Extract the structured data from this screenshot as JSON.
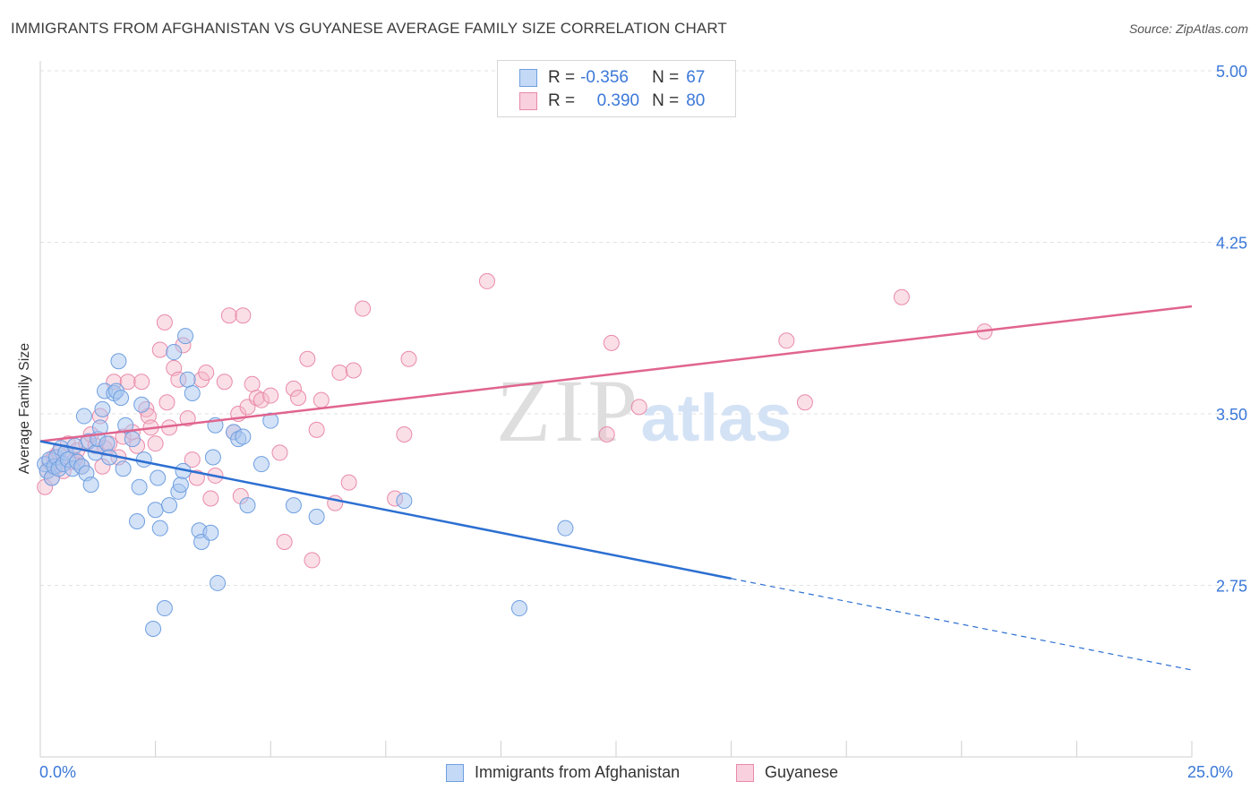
{
  "chart_title": "IMMIGRANTS FROM AFGHANISTAN VS GUYANESE AVERAGE FAMILY SIZE CORRELATION CHART",
  "source_text": "Source: ZipAtlas.com",
  "watermark": {
    "zip": "ZIP",
    "atlas": "atlas"
  },
  "colors": {
    "blue": "#a8c6f0",
    "blue_stroke": "#6f9fe0",
    "blue_line": "#2c6fd1",
    "pink": "#f5b8ca",
    "pink_stroke": "#e98aaa",
    "pink_line": "#e0648f",
    "tick_label": "#3b78d8"
  },
  "legend_top": {
    "rows": [
      {
        "r_label": "R =",
        "r_value": "-0.356",
        "n_label": "N =",
        "n_value": "67"
      },
      {
        "r_label": "R =",
        "r_value": "0.390",
        "n_label": "N =",
        "n_value": "80"
      }
    ]
  },
  "legend_bottom": [
    "Immigrants from Afghanistan",
    "Guyanese"
  ],
  "chart_data": {
    "type": "scatter",
    "title": "IMMIGRANTS FROM AFGHANISTAN VS GUYANESE AVERAGE FAMILY SIZE CORRELATION CHART",
    "xlabel": "",
    "ylabel": "Average Family Size",
    "xlim": [
      0,
      25
    ],
    "ylim": [
      2.0,
      5.12
    ],
    "x_tick_labels": [
      "0.0%",
      "25.0%"
    ],
    "y_ticks": [
      2.75,
      3.5,
      4.25,
      5.0
    ],
    "y_tick_labels": [
      "2.75",
      "3.50",
      "4.25",
      "5.00"
    ],
    "grid": "horizontal dashed",
    "legend_position": "top-center and bottom",
    "series": [
      {
        "name": "Immigrants from Afghanistan",
        "color": "#a8c6f0",
        "r": -0.356,
        "n": 67,
        "trend": {
          "x0": 0.0,
          "y0": 3.38,
          "x1": 15.0,
          "y1": 2.78,
          "dashed_to_x": 25.0,
          "dashed_to_y": 2.38
        },
        "points": [
          [
            0.1,
            3.28
          ],
          [
            0.15,
            3.25
          ],
          [
            0.2,
            3.3
          ],
          [
            0.25,
            3.22
          ],
          [
            0.3,
            3.27
          ],
          [
            0.35,
            3.31
          ],
          [
            0.4,
            3.26
          ],
          [
            0.45,
            3.35
          ],
          [
            0.5,
            3.28
          ],
          [
            0.55,
            3.33
          ],
          [
            0.6,
            3.3
          ],
          [
            0.7,
            3.26
          ],
          [
            0.75,
            3.36
          ],
          [
            0.8,
            3.29
          ],
          [
            0.9,
            3.27
          ],
          [
            0.95,
            3.49
          ],
          [
            1.0,
            3.24
          ],
          [
            1.05,
            3.38
          ],
          [
            1.1,
            3.19
          ],
          [
            1.2,
            3.33
          ],
          [
            1.25,
            3.39
          ],
          [
            1.3,
            3.44
          ],
          [
            1.35,
            3.52
          ],
          [
            1.4,
            3.6
          ],
          [
            1.45,
            3.37
          ],
          [
            1.5,
            3.31
          ],
          [
            1.6,
            3.59
          ],
          [
            1.65,
            3.6
          ],
          [
            1.7,
            3.73
          ],
          [
            1.75,
            3.57
          ],
          [
            1.8,
            3.26
          ],
          [
            1.85,
            3.45
          ],
          [
            2.0,
            3.39
          ],
          [
            2.1,
            3.03
          ],
          [
            2.15,
            3.18
          ],
          [
            2.2,
            3.54
          ],
          [
            2.25,
            3.3
          ],
          [
            2.45,
            2.56
          ],
          [
            2.5,
            3.08
          ],
          [
            2.55,
            3.22
          ],
          [
            2.6,
            3.0
          ],
          [
            2.7,
            2.65
          ],
          [
            2.8,
            3.1
          ],
          [
            2.9,
            3.77
          ],
          [
            3.0,
            3.16
          ],
          [
            3.05,
            3.19
          ],
          [
            3.1,
            3.25
          ],
          [
            3.15,
            3.84
          ],
          [
            3.2,
            3.65
          ],
          [
            3.3,
            3.59
          ],
          [
            3.45,
            2.99
          ],
          [
            3.5,
            2.94
          ],
          [
            3.7,
            2.98
          ],
          [
            3.75,
            3.31
          ],
          [
            3.8,
            3.45
          ],
          [
            3.85,
            2.76
          ],
          [
            4.2,
            3.42
          ],
          [
            4.3,
            3.39
          ],
          [
            4.4,
            3.4
          ],
          [
            4.5,
            3.1
          ],
          [
            4.8,
            3.28
          ],
          [
            5.0,
            3.47
          ],
          [
            5.5,
            3.1
          ],
          [
            6.0,
            3.05
          ],
          [
            7.9,
            3.12
          ],
          [
            10.4,
            2.65
          ],
          [
            11.4,
            3.0
          ]
        ]
      },
      {
        "name": "Guyanese",
        "color": "#f5b8ca",
        "r": 0.39,
        "n": 80,
        "trend": {
          "x0": 0.0,
          "y0": 3.38,
          "x1": 25.0,
          "y1": 3.97
        },
        "points": [
          [
            0.1,
            3.18
          ],
          [
            0.15,
            3.25
          ],
          [
            0.2,
            3.29
          ],
          [
            0.25,
            3.22
          ],
          [
            0.3,
            3.31
          ],
          [
            0.35,
            3.27
          ],
          [
            0.4,
            3.33
          ],
          [
            0.5,
            3.25
          ],
          [
            0.6,
            3.37
          ],
          [
            0.7,
            3.29
          ],
          [
            0.75,
            3.3
          ],
          [
            0.8,
            3.34
          ],
          [
            0.9,
            3.27
          ],
          [
            1.0,
            3.37
          ],
          [
            1.1,
            3.41
          ],
          [
            1.2,
            3.36
          ],
          [
            1.3,
            3.49
          ],
          [
            1.35,
            3.27
          ],
          [
            1.4,
            3.35
          ],
          [
            1.5,
            3.37
          ],
          [
            1.6,
            3.64
          ],
          [
            1.7,
            3.31
          ],
          [
            1.8,
            3.4
          ],
          [
            1.9,
            3.64
          ],
          [
            2.0,
            3.42
          ],
          [
            2.1,
            3.36
          ],
          [
            2.2,
            3.64
          ],
          [
            2.3,
            3.52
          ],
          [
            2.35,
            3.49
          ],
          [
            2.4,
            3.44
          ],
          [
            2.5,
            3.37
          ],
          [
            2.6,
            3.78
          ],
          [
            2.7,
            3.9
          ],
          [
            2.75,
            3.55
          ],
          [
            2.8,
            3.44
          ],
          [
            2.9,
            3.7
          ],
          [
            3.0,
            3.65
          ],
          [
            3.1,
            3.8
          ],
          [
            3.2,
            3.48
          ],
          [
            3.3,
            3.3
          ],
          [
            3.4,
            3.22
          ],
          [
            3.5,
            3.65
          ],
          [
            3.6,
            3.68
          ],
          [
            3.7,
            3.13
          ],
          [
            3.8,
            3.23
          ],
          [
            4.0,
            3.64
          ],
          [
            4.1,
            3.93
          ],
          [
            4.2,
            3.42
          ],
          [
            4.3,
            3.5
          ],
          [
            4.35,
            3.14
          ],
          [
            4.4,
            3.93
          ],
          [
            4.5,
            3.53
          ],
          [
            4.6,
            3.63
          ],
          [
            4.7,
            3.57
          ],
          [
            4.8,
            3.56
          ],
          [
            5.0,
            3.58
          ],
          [
            5.2,
            3.33
          ],
          [
            5.3,
            2.94
          ],
          [
            5.5,
            3.61
          ],
          [
            5.6,
            3.57
          ],
          [
            5.8,
            3.74
          ],
          [
            5.9,
            2.86
          ],
          [
            6.0,
            3.43
          ],
          [
            6.1,
            3.56
          ],
          [
            6.4,
            3.11
          ],
          [
            6.5,
            3.68
          ],
          [
            6.7,
            3.2
          ],
          [
            6.8,
            3.69
          ],
          [
            7.0,
            3.96
          ],
          [
            7.7,
            3.13
          ],
          [
            7.9,
            3.41
          ],
          [
            8.0,
            3.74
          ],
          [
            9.7,
            4.08
          ],
          [
            12.3,
            3.41
          ],
          [
            12.4,
            3.81
          ],
          [
            13.0,
            3.53
          ],
          [
            16.2,
            3.82
          ],
          [
            16.6,
            3.55
          ],
          [
            18.7,
            4.01
          ],
          [
            20.5,
            3.86
          ]
        ]
      }
    ]
  }
}
